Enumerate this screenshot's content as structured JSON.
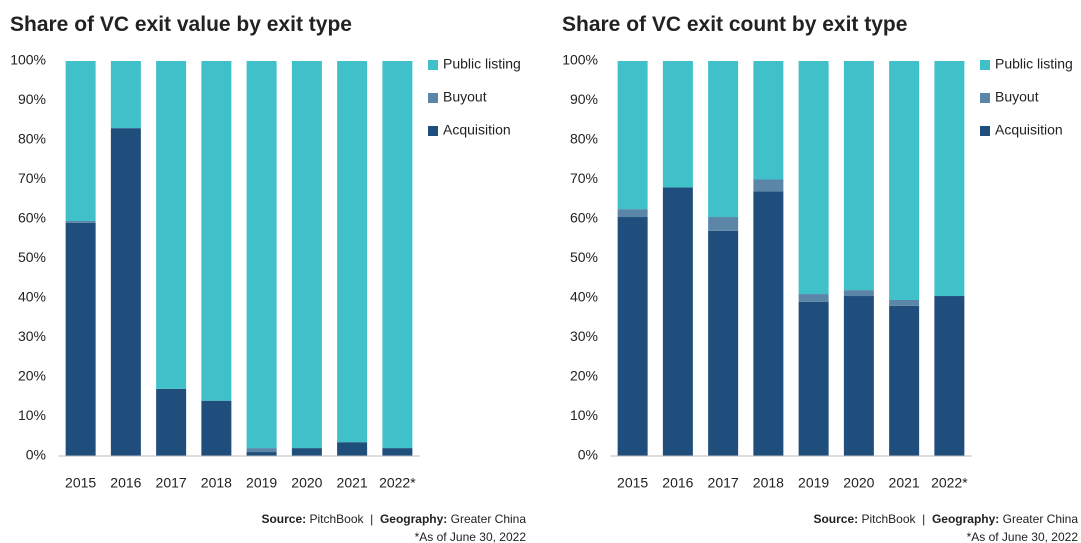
{
  "chart_data": [
    {
      "type": "stacked_bar",
      "title": "Share of VC exit value by exit type",
      "categories": [
        "2015",
        "2016",
        "2017",
        "2018",
        "2019",
        "2020",
        "2021",
        "2022*"
      ],
      "series": [
        {
          "name": "Acquisition",
          "color": "#1f4e7c",
          "values": [
            59,
            83,
            17,
            14,
            1,
            2,
            3.5,
            2
          ]
        },
        {
          "name": "Buyout",
          "color": "#5b86a8",
          "values": [
            0.5,
            0,
            0,
            0,
            1,
            0,
            0,
            0
          ]
        },
        {
          "name": "Public listing",
          "color": "#40c1c9",
          "values": [
            40.5,
            17,
            83,
            86,
            98,
            98,
            96.5,
            98
          ]
        }
      ],
      "ylim": [
        0,
        100
      ],
      "yticks": [
        {
          "value": 0,
          "label": "0%"
        },
        {
          "value": 10,
          "label": "10%"
        },
        {
          "value": 20,
          "label": "20%"
        },
        {
          "value": 30,
          "label": "30%"
        },
        {
          "value": 40,
          "label": "40%"
        },
        {
          "value": 50,
          "label": "50%"
        },
        {
          "value": 60,
          "label": "60%"
        },
        {
          "value": 70,
          "label": "70%"
        },
        {
          "value": 80,
          "label": "80%"
        },
        {
          "value": 90,
          "label": "90%"
        },
        {
          "value": 100,
          "label": "100%"
        }
      ],
      "source": [
        {
          "text": "Source:",
          "bold": true
        },
        {
          "text": " PitchBook  |  ",
          "bold": false
        },
        {
          "text": "Geography:",
          "bold": true
        },
        {
          "text": " Greater China",
          "bold": false
        }
      ],
      "note": "*As of June 30, 2022"
    },
    {
      "type": "stacked_bar",
      "title": "Share of VC exit count by exit type",
      "categories": [
        "2015",
        "2016",
        "2017",
        "2018",
        "2019",
        "2020",
        "2021",
        "2022*"
      ],
      "series": [
        {
          "name": "Acquisition",
          "color": "#1f4e7c",
          "values": [
            60.5,
            68,
            57,
            67,
            39,
            40.5,
            38,
            40.5
          ]
        },
        {
          "name": "Buyout",
          "color": "#5b86a8",
          "values": [
            2,
            0,
            3.5,
            3,
            2,
            1.5,
            1.5,
            0
          ]
        },
        {
          "name": "Public listing",
          "color": "#40c1c9",
          "values": [
            37.5,
            32,
            39.5,
            30,
            59,
            58,
            60.5,
            59.5
          ]
        }
      ],
      "ylim": [
        0,
        100
      ],
      "yticks": [
        {
          "value": 0,
          "label": "0%"
        },
        {
          "value": 10,
          "label": "10%"
        },
        {
          "value": 20,
          "label": "20%"
        },
        {
          "value": 30,
          "label": "30%"
        },
        {
          "value": 40,
          "label": "40%"
        },
        {
          "value": 50,
          "label": "50%"
        },
        {
          "value": 60,
          "label": "60%"
        },
        {
          "value": 70,
          "label": "70%"
        },
        {
          "value": 80,
          "label": "80%"
        },
        {
          "value": 90,
          "label": "90%"
        },
        {
          "value": 100,
          "label": "100%"
        }
      ],
      "source": [
        {
          "text": "Source:",
          "bold": true
        },
        {
          "text": " PitchBook  |  ",
          "bold": false
        },
        {
          "text": "Geography:",
          "bold": true
        },
        {
          "text": " Greater China",
          "bold": false
        }
      ],
      "note": "*As of June 30, 2022"
    }
  ]
}
